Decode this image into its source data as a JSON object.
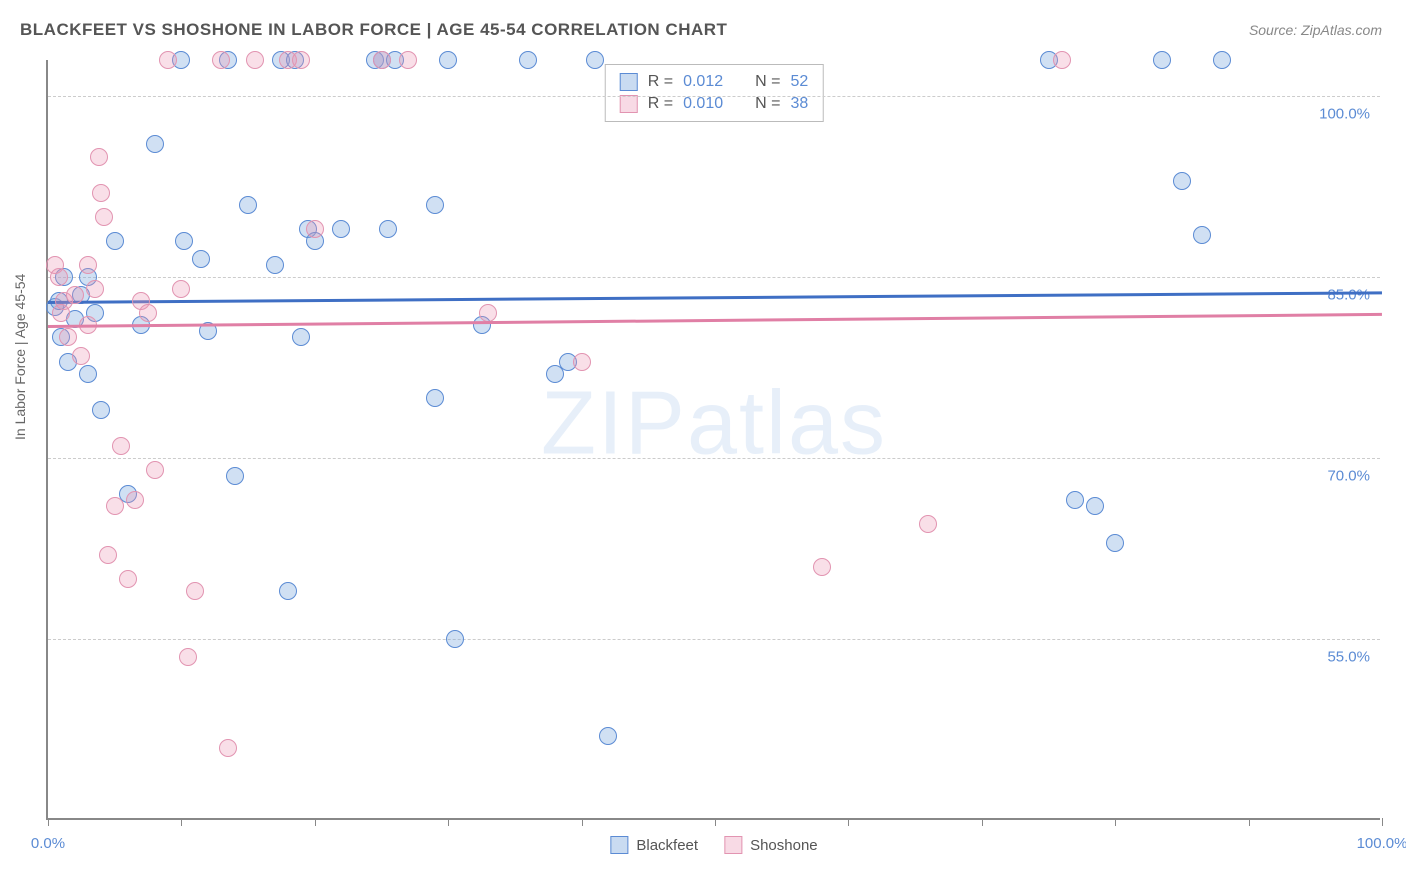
{
  "title": "BLACKFEET VS SHOSHONE IN LABOR FORCE | AGE 45-54 CORRELATION CHART",
  "source": "Source: ZipAtlas.com",
  "watermark": "ZIPatlas",
  "y_axis_label": "In Labor Force | Age 45-54",
  "chart": {
    "type": "scatter",
    "background_color": "#ffffff",
    "axis_color": "#888888",
    "grid_color": "#cccccc",
    "grid_dash": true,
    "xlim": [
      0,
      100
    ],
    "ylim": [
      40,
      103
    ],
    "x_ticks": [
      0,
      10,
      20,
      30,
      40,
      50,
      60,
      70,
      80,
      90,
      100
    ],
    "x_tick_labels": {
      "0": "0.0%",
      "100": "100.0%"
    },
    "y_gridlines": [
      55,
      70,
      85,
      100
    ],
    "y_tick_labels": {
      "55": "55.0%",
      "70": "70.0%",
      "85": "85.0%",
      "100": "100.0%"
    },
    "marker_radius": 9,
    "series": [
      {
        "name": "Blackfeet",
        "color_fill": "rgba(120,165,220,0.35)",
        "color_stroke": "#5b8bd4",
        "trend": {
          "y_start": 83.0,
          "y_end": 83.8,
          "color": "#3f6fc4"
        },
        "points": [
          [
            0.5,
            82.5
          ],
          [
            0.8,
            83.0
          ],
          [
            1.0,
            80.0
          ],
          [
            1.2,
            85.0
          ],
          [
            1.5,
            78.0
          ],
          [
            2.0,
            81.5
          ],
          [
            2.5,
            83.5
          ],
          [
            3.0,
            77.0
          ],
          [
            3.0,
            85.0
          ],
          [
            3.5,
            82.0
          ],
          [
            4.0,
            74.0
          ],
          [
            5.0,
            88.0
          ],
          [
            6.0,
            67.0
          ],
          [
            7.0,
            81.0
          ],
          [
            8.0,
            96.0
          ],
          [
            10.0,
            103.0
          ],
          [
            10.2,
            88.0
          ],
          [
            11.5,
            86.5
          ],
          [
            12.0,
            80.5
          ],
          [
            13.5,
            103.0
          ],
          [
            14.0,
            68.5
          ],
          [
            15.0,
            91.0
          ],
          [
            17.0,
            86.0
          ],
          [
            17.5,
            103.0
          ],
          [
            18.0,
            59.0
          ],
          [
            18.5,
            103.0
          ],
          [
            19.0,
            80.0
          ],
          [
            19.5,
            89.0
          ],
          [
            20.0,
            88.0
          ],
          [
            22.0,
            89.0
          ],
          [
            24.5,
            103.0
          ],
          [
            25.0,
            103.0
          ],
          [
            25.5,
            89.0
          ],
          [
            26.0,
            103.0
          ],
          [
            29.0,
            91.0
          ],
          [
            29.0,
            75.0
          ],
          [
            30.0,
            103.0
          ],
          [
            30.5,
            55.0
          ],
          [
            32.5,
            81.0
          ],
          [
            36.0,
            103.0
          ],
          [
            38.0,
            77.0
          ],
          [
            39.0,
            78.0
          ],
          [
            41.0,
            103.0
          ],
          [
            42.0,
            47.0
          ],
          [
            75.0,
            103.0
          ],
          [
            77.0,
            66.5
          ],
          [
            78.5,
            66.0
          ],
          [
            80.0,
            63.0
          ],
          [
            83.5,
            103.0
          ],
          [
            85.0,
            93.0
          ],
          [
            86.5,
            88.5
          ],
          [
            88.0,
            103.0
          ]
        ]
      },
      {
        "name": "Shoshone",
        "color_fill": "rgba(235,150,180,0.30)",
        "color_stroke": "#e294b1",
        "trend": {
          "y_start": 81.0,
          "y_end": 82.0,
          "color": "#e07fa5"
        },
        "points": [
          [
            0.5,
            86.0
          ],
          [
            0.8,
            85.0
          ],
          [
            1.0,
            82.0
          ],
          [
            1.2,
            83.0
          ],
          [
            1.5,
            80.0
          ],
          [
            2.0,
            83.5
          ],
          [
            2.5,
            78.5
          ],
          [
            3.0,
            81.0
          ],
          [
            3.0,
            86.0
          ],
          [
            3.5,
            84.0
          ],
          [
            3.8,
            95.0
          ],
          [
            4.0,
            92.0
          ],
          [
            4.2,
            90.0
          ],
          [
            4.5,
            62.0
          ],
          [
            5.0,
            66.0
          ],
          [
            5.5,
            71.0
          ],
          [
            6.0,
            60.0
          ],
          [
            6.5,
            66.5
          ],
          [
            7.0,
            83.0
          ],
          [
            7.5,
            82.0
          ],
          [
            8.0,
            69.0
          ],
          [
            9.0,
            103.0
          ],
          [
            10.0,
            84.0
          ],
          [
            10.5,
            53.5
          ],
          [
            11.0,
            59.0
          ],
          [
            13.0,
            103.0
          ],
          [
            13.5,
            46.0
          ],
          [
            15.5,
            103.0
          ],
          [
            18.0,
            103.0
          ],
          [
            19.0,
            103.0
          ],
          [
            20.0,
            89.0
          ],
          [
            25.0,
            103.0
          ],
          [
            27.0,
            103.0
          ],
          [
            33.0,
            82.0
          ],
          [
            40.0,
            78.0
          ],
          [
            58.0,
            61.0
          ],
          [
            66.0,
            64.5
          ],
          [
            76.0,
            103.0
          ]
        ]
      }
    ]
  },
  "legend_top": {
    "rows": [
      {
        "swatch": "blue",
        "r_label": "R =",
        "r_value": "0.012",
        "n_label": "N =",
        "n_value": "52"
      },
      {
        "swatch": "pink",
        "r_label": "R =",
        "r_value": "0.010",
        "n_label": "N =",
        "n_value": "38"
      }
    ]
  },
  "legend_bottom": {
    "items": [
      {
        "swatch": "blue",
        "label": "Blackfeet"
      },
      {
        "swatch": "pink",
        "label": "Shoshone"
      }
    ]
  }
}
